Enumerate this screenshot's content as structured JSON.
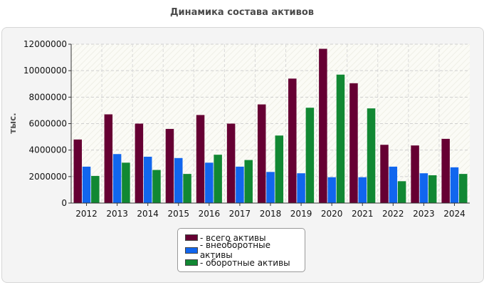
{
  "chart_data": {
    "type": "bar",
    "title": "Динамика состава активов",
    "ylabel": "тыс.",
    "xlabel": "",
    "ylim": [
      0,
      12000000
    ],
    "yticks": [
      0,
      2000000,
      4000000,
      6000000,
      8000000,
      10000000,
      12000000
    ],
    "grid": true,
    "legend_position": "bottom-center",
    "categories": [
      "2012",
      "2013",
      "2014",
      "2015",
      "2016",
      "2017",
      "2018",
      "2019",
      "2020",
      "2021",
      "2022",
      "2023",
      "2024"
    ],
    "series": [
      {
        "name": "- всего активы",
        "color": "#660033",
        "values": [
          4800000,
          6700000,
          6000000,
          5600000,
          6650000,
          6000000,
          7450000,
          9400000,
          11650000,
          9050000,
          4400000,
          4350000,
          4850000
        ]
      },
      {
        "name": "- внеоборотные активы",
        "color": "#1166ee",
        "values": [
          2750000,
          3700000,
          3500000,
          3400000,
          3050000,
          2750000,
          2350000,
          2250000,
          1950000,
          1950000,
          2750000,
          2250000,
          2700000
        ]
      },
      {
        "name": "- оборотные активы",
        "color": "#118833",
        "values": [
          2050000,
          3050000,
          2500000,
          2200000,
          3650000,
          3250000,
          5100000,
          7200000,
          9700000,
          7150000,
          1650000,
          2100000,
          2200000
        ]
      }
    ]
  }
}
